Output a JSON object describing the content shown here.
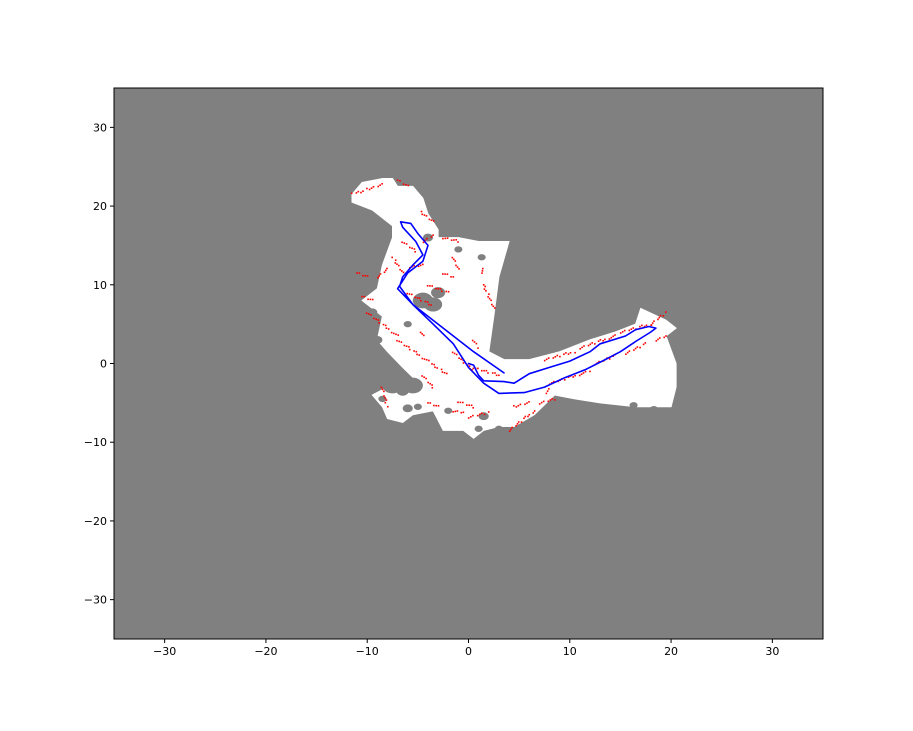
{
  "figure": {
    "background": "#ffffff"
  },
  "map": {
    "unknown_color": "#808080",
    "free_color": "#ffffff",
    "obstacle_color": "#ff0000",
    "trajectory_color": "#0000ff",
    "xlim": [
      -35,
      35
    ],
    "ylim": [
      -35,
      35
    ],
    "x_ticks": [
      -30,
      -20,
      -10,
      0,
      10,
      20,
      30
    ],
    "y_ticks": [
      30,
      20,
      10,
      0,
      -10,
      -20,
      -30
    ],
    "x_tick_labels": [
      "−30",
      "−20",
      "−10",
      "0",
      "10",
      "20",
      "30"
    ],
    "y_tick_labels": [
      "30",
      "20",
      "10",
      "0",
      "−10",
      "−20",
      "−30"
    ]
  },
  "chart_data": {
    "type": "scatter",
    "title": "",
    "xlabel": "",
    "ylabel": "",
    "xlim": [
      -35,
      35
    ],
    "ylim": [
      -35,
      35
    ],
    "grid": false,
    "free_space_outline": [
      [
        -11.5,
        21.5
      ],
      [
        -10.5,
        23.0
      ],
      [
        -8.5,
        23.5
      ],
      [
        -7.5,
        23.5
      ],
      [
        -7.0,
        22.5
      ],
      [
        -5.5,
        22.5
      ],
      [
        -4.5,
        21.0
      ],
      [
        -4.0,
        19.0
      ],
      [
        -3.0,
        17.0
      ],
      [
        -3.0,
        16.0
      ],
      [
        -1.0,
        16.0
      ],
      [
        1.0,
        15.5
      ],
      [
        4.0,
        15.5
      ],
      [
        3.0,
        11.0
      ],
      [
        2.5,
        6.0
      ],
      [
        2.0,
        1.5
      ],
      [
        3.5,
        0.5
      ],
      [
        6.0,
        0.5
      ],
      [
        9.0,
        1.5
      ],
      [
        12.0,
        3.0
      ],
      [
        14.5,
        4.0
      ],
      [
        16.5,
        5.0
      ],
      [
        17.0,
        7.0
      ],
      [
        19.5,
        5.5
      ],
      [
        20.5,
        4.5
      ],
      [
        19.5,
        3.5
      ],
      [
        20.5,
        0.0
      ],
      [
        20.5,
        -3.0
      ],
      [
        20.0,
        -5.5
      ],
      [
        16.5,
        -5.5
      ],
      [
        13.0,
        -5.0
      ],
      [
        10.5,
        -4.5
      ],
      [
        8.5,
        -4.0
      ],
      [
        6.5,
        -6.5
      ],
      [
        4.5,
        -8.0
      ],
      [
        3.0,
        -8.0
      ],
      [
        1.5,
        -8.5
      ],
      [
        0.5,
        -9.5
      ],
      [
        -0.5,
        -8.5
      ],
      [
        -2.5,
        -8.5
      ],
      [
        -3.5,
        -6.0
      ],
      [
        -5.5,
        -6.5
      ],
      [
        -6.5,
        -7.5
      ],
      [
        -8.0,
        -7.0
      ],
      [
        -8.5,
        -5.5
      ],
      [
        -9.5,
        -4.0
      ],
      [
        -8.0,
        -3.0
      ],
      [
        -4.5,
        -3.0
      ],
      [
        -6.5,
        -0.5
      ],
      [
        -8.0,
        1.5
      ],
      [
        -9.0,
        3.0
      ],
      [
        -8.5,
        6.0
      ],
      [
        -10.5,
        8.0
      ],
      [
        -9.0,
        9.5
      ],
      [
        -8.5,
        12.5
      ],
      [
        -7.5,
        16.0
      ],
      [
        -7.5,
        17.5
      ],
      [
        -9.5,
        19.5
      ],
      [
        -11.5,
        20.5
      ]
    ],
    "unknown_holes": [
      {
        "cx": -4.5,
        "cy": 8.0,
        "r": 1.0
      },
      {
        "cx": -3.5,
        "cy": 7.5,
        "r": 0.9
      },
      {
        "cx": -3.0,
        "cy": 9.0,
        "r": 0.7
      },
      {
        "cx": -9.5,
        "cy": 6.5,
        "r": 0.5
      },
      {
        "cx": -6.0,
        "cy": 5.0,
        "r": 0.4
      },
      {
        "cx": -9.0,
        "cy": 3.0,
        "r": 0.5
      },
      {
        "cx": -8.5,
        "cy": 0.8,
        "r": 0.6
      },
      {
        "cx": -7.5,
        "cy": -2.8,
        "r": 1.0
      },
      {
        "cx": -5.5,
        "cy": -2.8,
        "r": 1.0
      },
      {
        "cx": -6.5,
        "cy": -3.5,
        "r": 0.6
      },
      {
        "cx": -4.0,
        "cy": 16.0,
        "r": 0.5
      },
      {
        "cx": -1.0,
        "cy": 14.5,
        "r": 0.4
      },
      {
        "cx": 1.3,
        "cy": 13.5,
        "r": 0.4
      },
      {
        "cx": -8.5,
        "cy": -4.5,
        "r": 0.4
      },
      {
        "cx": -6.0,
        "cy": -5.7,
        "r": 0.5
      },
      {
        "cx": -5.0,
        "cy": -5.5,
        "r": 0.4
      },
      {
        "cx": -2.0,
        "cy": -6.0,
        "r": 0.4
      },
      {
        "cx": 1.5,
        "cy": -6.7,
        "r": 0.5
      },
      {
        "cx": 1.0,
        "cy": -8.3,
        "r": 0.4
      },
      {
        "cx": 3.0,
        "cy": -8.3,
        "r": 0.4
      },
      {
        "cx": 16.3,
        "cy": -5.3,
        "r": 0.4
      },
      {
        "cx": 18.3,
        "cy": -5.8,
        "r": 0.4
      }
    ],
    "series": [
      {
        "values": [
          [
            3.5,
            -1.2
          ],
          [
            0.5,
            1.5
          ],
          [
            -2.5,
            4.5
          ],
          [
            -5.5,
            7.5
          ],
          [
            -7.0,
            9.5
          ],
          [
            -6.0,
            11.5
          ],
          [
            -4.5,
            13.0
          ],
          [
            -4.0,
            15.0
          ],
          [
            -5.0,
            16.5
          ],
          [
            -5.7,
            17.8
          ],
          [
            -6.7,
            18.0
          ],
          [
            -6.5,
            17.3
          ],
          [
            -5.2,
            15.5
          ],
          [
            -4.5,
            13.8
          ],
          [
            -5.5,
            12.5
          ],
          [
            -6.5,
            11.0
          ],
          [
            -6.8,
            9.8
          ],
          [
            -5.5,
            7.5
          ],
          [
            -3.5,
            5.0
          ],
          [
            -1.5,
            2.5
          ],
          [
            0.0,
            -0.5
          ],
          [
            1.5,
            -2.5
          ],
          [
            3.0,
            -3.8
          ],
          [
            5.5,
            -3.7
          ],
          [
            7.5,
            -3.0
          ],
          [
            9.5,
            -1.8
          ],
          [
            11.5,
            -0.8
          ],
          [
            13.5,
            0.5
          ],
          [
            15.0,
            1.5
          ],
          [
            16.5,
            2.8
          ],
          [
            18.0,
            4.0
          ],
          [
            18.5,
            4.5
          ],
          [
            17.8,
            4.7
          ],
          [
            16.5,
            4.3
          ],
          [
            15.5,
            3.5
          ],
          [
            13.0,
            2.5
          ],
          [
            12.0,
            1.5
          ],
          [
            10.0,
            0.3
          ],
          [
            8.0,
            -0.5
          ],
          [
            6.0,
            -1.3
          ],
          [
            4.5,
            -2.5
          ],
          [
            3.5,
            -2.3
          ],
          [
            1.5,
            -2.2
          ],
          [
            1.0,
            -1.5
          ],
          [
            0.5,
            -0.2
          ],
          [
            0.0,
            0.0
          ]
        ]
      }
    ],
    "obstacle_segments": [
      [
        [
          -8.5,
          22.7
        ],
        [
          -11.5,
          21.5
        ]
      ],
      [
        [
          -6.0,
          22.5
        ],
        [
          -7.0,
          23.3
        ]
      ],
      [
        [
          -3.5,
          18.0
        ],
        [
          -4.7,
          19.2
        ]
      ],
      [
        [
          -6.5,
          15.5
        ],
        [
          -5.2,
          14.3
        ]
      ],
      [
        [
          -4.5,
          15.5
        ],
        [
          -3.5,
          16.3
        ]
      ],
      [
        [
          -2.5,
          16.0
        ],
        [
          -0.8,
          15.5
        ]
      ],
      [
        [
          -9.0,
          11.0
        ],
        [
          -8.0,
          12.0
        ]
      ],
      [
        [
          -5.8,
          12.3
        ],
        [
          -4.5,
          12.5
        ]
      ],
      [
        [
          -9.5,
          8.0
        ],
        [
          -10.5,
          8.5
        ]
      ],
      [
        [
          -10.0,
          11.0
        ],
        [
          -11.0,
          11.5
        ]
      ],
      [
        [
          -2.5,
          11.5
        ],
        [
          -1.5,
          11.0
        ]
      ],
      [
        [
          -4.0,
          10.0
        ],
        [
          -2.0,
          9.0
        ]
      ],
      [
        [
          -6.5,
          11.5
        ],
        [
          -7.5,
          13.5
        ]
      ],
      [
        [
          -4.5,
          3.5
        ],
        [
          -4.8,
          4.2
        ]
      ],
      [
        [
          -6.0,
          9.0
        ],
        [
          -3.5,
          7.3
        ]
      ],
      [
        [
          -10.0,
          6.5
        ],
        [
          -7.0,
          3.5
        ]
      ],
      [
        [
          -7.0,
          3.0
        ],
        [
          -2.0,
          -1.5
        ]
      ],
      [
        [
          -1.5,
          1.5
        ],
        [
          0.5,
          -1.0
        ]
      ],
      [
        [
          0.5,
          -0.5
        ],
        [
          3.0,
          -1.5
        ]
      ],
      [
        [
          -4.5,
          -1.5
        ],
        [
          -3.5,
          -3.0
        ]
      ],
      [
        [
          -3.0,
          -5.5
        ],
        [
          -4.0,
          -5.0
        ]
      ],
      [
        [
          -1.0,
          -4.8
        ],
        [
          0.5,
          -5.5
        ]
      ],
      [
        [
          -1.5,
          -6.0
        ],
        [
          -0.5,
          -6.2
        ]
      ],
      [
        [
          0.0,
          -6.8
        ],
        [
          2.0,
          -6.2
        ]
      ],
      [
        [
          -8.5,
          -3.0
        ],
        [
          -8.0,
          -5.5
        ]
      ],
      [
        [
          4.0,
          -8.5
        ],
        [
          6.5,
          -6.0
        ]
      ],
      [
        [
          6.0,
          -5.0
        ],
        [
          4.5,
          -5.5
        ]
      ],
      [
        [
          7.0,
          -5.0
        ],
        [
          8.5,
          -4.5
        ]
      ],
      [
        [
          8.0,
          -3.3
        ],
        [
          7.5,
          -4.0
        ]
      ],
      [
        [
          8.0,
          -2.5
        ],
        [
          12.0,
          -1.0
        ]
      ],
      [
        [
          12.5,
          0.0
        ],
        [
          14.5,
          1.0
        ]
      ],
      [
        [
          15.5,
          1.3
        ],
        [
          17.5,
          2.5
        ]
      ],
      [
        [
          18.5,
          3.0
        ],
        [
          19.5,
          3.5
        ]
      ],
      [
        [
          7.5,
          0.5
        ],
        [
          10.5,
          1.5
        ]
      ],
      [
        [
          11.0,
          2.0
        ],
        [
          14.5,
          3.5
        ]
      ],
      [
        [
          15.0,
          4.0
        ],
        [
          18.0,
          5.0
        ]
      ],
      [
        [
          18.0,
          5.0
        ],
        [
          19.5,
          6.5
        ]
      ],
      [
        [
          2.5,
          7.0
        ],
        [
          1.5,
          10.0
        ]
      ],
      [
        [
          1.5,
          12.0
        ],
        [
          1.3,
          11.5
        ]
      ],
      [
        [
          0.5,
          3.0
        ],
        [
          1.0,
          2.0
        ]
      ],
      [
        [
          -1.5,
          13.5
        ],
        [
          -1.0,
          12.0
        ]
      ]
    ]
  }
}
